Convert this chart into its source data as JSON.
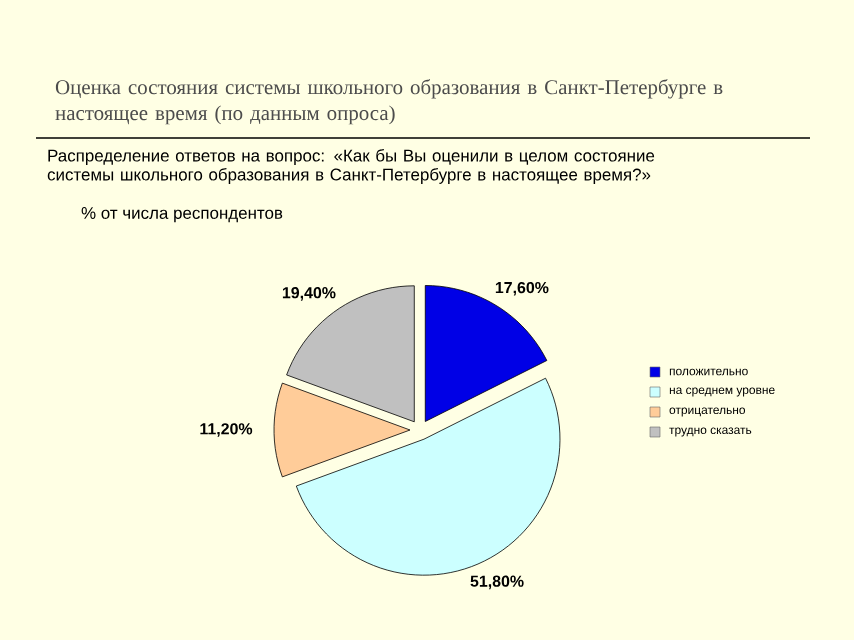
{
  "chart_data": {
    "type": "pie",
    "title": "Оценка состояния системы школьного образования в Санкт-Петербурге в настоящее время (по данным опроса)",
    "subtitle": "Распределение ответов на вопрос: «Как бы Вы оценили в целом состояние системы школьного образования в Санкт-Петербурге в настоящее время?»",
    "annotations": [
      "% от числа респондентов"
    ],
    "categories": [
      "положительно",
      "на среднем уровне",
      "отрицательно",
      "трудно сказать"
    ],
    "values": [
      17.6,
      51.8,
      11.2,
      19.4
    ],
    "value_labels": [
      "17,60%",
      "51,80%",
      "11,20%",
      "19,40%"
    ],
    "colors": [
      "#0000e6",
      "#ccffff",
      "#ffcc99",
      "#c0c0c0"
    ],
    "legend": "right"
  }
}
